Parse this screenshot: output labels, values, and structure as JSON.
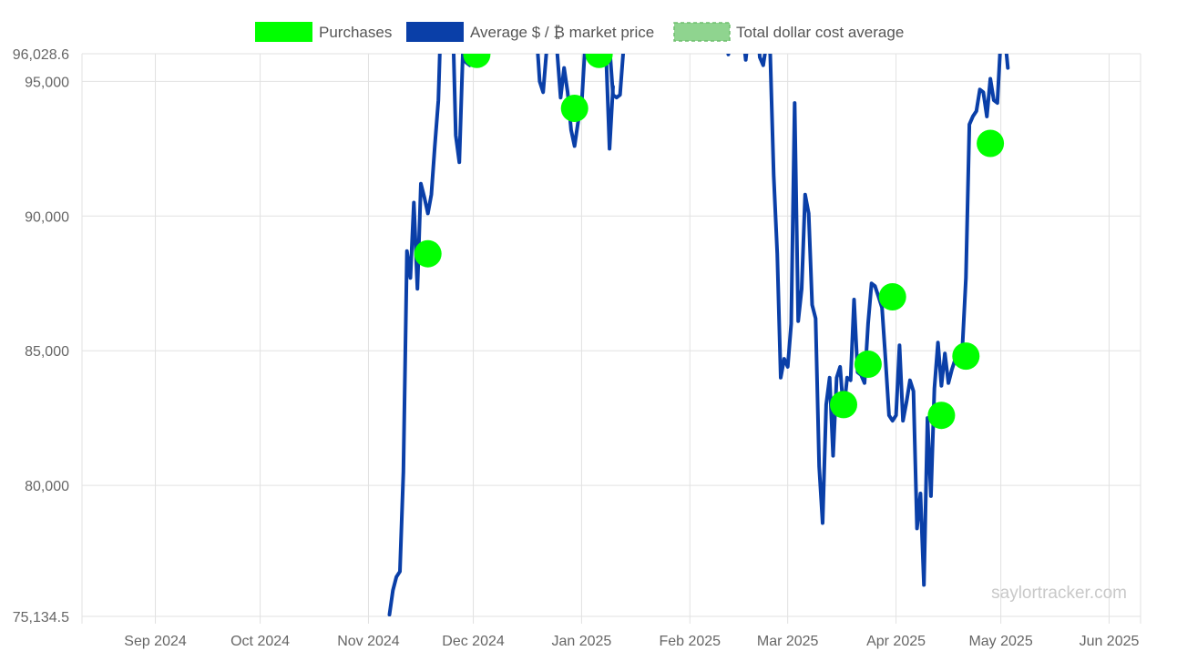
{
  "chart_data": {
    "type": "line",
    "title": "",
    "xlabel": "",
    "ylabel": "",
    "ylim": [
      75134.5,
      96028.6
    ],
    "xlim": [
      "2024-08-11",
      "2025-06-10"
    ],
    "y_ticks": [
      "96,028.6",
      "95,000",
      "90,000",
      "85,000",
      "80,000",
      "75,134.5"
    ],
    "y_tick_values": [
      96028.6,
      95000,
      90000,
      85000,
      80000,
      75134.5
    ],
    "x_ticks": [
      "Sep 2024",
      "Oct 2024",
      "Nov 2024",
      "Dec 2024",
      "Jan 2025",
      "Feb 2025",
      "Mar 2025",
      "Apr 2025",
      "May 2025",
      "Jun 2025"
    ],
    "x_tick_dates": [
      "2024-09-01",
      "2024-10-01",
      "2024-11-01",
      "2024-12-01",
      "2025-01-01",
      "2025-02-01",
      "2025-03-01",
      "2025-04-01",
      "2025-05-01",
      "2025-06-01"
    ],
    "grid": true,
    "legend_position": "top",
    "legend": [
      {
        "label": "Purchases",
        "color": "#00ff00",
        "style": "filled"
      },
      {
        "label": "Average $ / ₿ market price",
        "color": "#0a3fa8",
        "style": "filled"
      },
      {
        "label": "Total dollar cost average",
        "color": "#8fd48f",
        "style": "dashed"
      }
    ],
    "watermark": "saylortracker.com",
    "series": [
      {
        "name": "Average $ / ₿ market price",
        "kind": "line",
        "color": "#0a3fa8",
        "points": [
          [
            "2024-11-07",
            75200
          ],
          [
            "2024-11-08",
            76100
          ],
          [
            "2024-11-09",
            76600
          ],
          [
            "2024-11-10",
            76800
          ],
          [
            "2024-11-11",
            80500
          ],
          [
            "2024-11-12",
            88700
          ],
          [
            "2024-11-13",
            87700
          ],
          [
            "2024-11-14",
            90500
          ],
          [
            "2024-11-15",
            87300
          ],
          [
            "2024-11-16",
            91200
          ],
          [
            "2024-11-17",
            90700
          ],
          [
            "2024-11-18",
            90100
          ],
          [
            "2024-11-19",
            90800
          ],
          [
            "2024-11-20",
            92600
          ],
          [
            "2024-11-21",
            94300
          ],
          [
            "2024-11-22",
            98500
          ],
          [
            "2024-11-25",
            98000
          ],
          [
            "2024-11-26",
            93000
          ],
          [
            "2024-11-27",
            92000
          ],
          [
            "2024-11-28",
            96000
          ],
          [
            "2024-11-29",
            95700
          ],
          [
            "2024-11-30",
            95600
          ],
          [
            "2024-12-01",
            96400
          ],
          [
            "2025-01-09",
            96300
          ],
          [
            "2025-01-10",
            94500
          ],
          [
            "2025-01-11",
            94400
          ],
          [
            "2025-01-12",
            94500
          ],
          [
            "2025-01-13",
            96200
          ],
          [
            "2025-01-18",
            97500
          ],
          [
            "2025-02-16",
            97000
          ],
          [
            "2025-02-17",
            95800
          ],
          [
            "2025-02-18",
            97000
          ],
          [
            "2025-02-19",
            97200
          ],
          [
            "2025-02-20",
            97800
          ],
          [
            "2025-02-21",
            95900
          ],
          [
            "2025-02-22",
            95600
          ],
          [
            "2025-02-23",
            96500
          ],
          [
            "2025-02-24",
            96000
          ],
          [
            "2025-02-25",
            91500
          ],
          [
            "2025-02-26",
            88600
          ],
          [
            "2025-02-27",
            84000
          ],
          [
            "2025-02-28",
            84700
          ],
          [
            "2025-03-01",
            84400
          ],
          [
            "2025-03-02",
            86000
          ],
          [
            "2025-03-03",
            94200
          ],
          [
            "2025-03-04",
            86100
          ],
          [
            "2025-03-05",
            87300
          ],
          [
            "2025-03-06",
            90800
          ],
          [
            "2025-03-07",
            90100
          ],
          [
            "2025-03-08",
            86700
          ],
          [
            "2025-03-09",
            86200
          ],
          [
            "2025-03-10",
            80700
          ],
          [
            "2025-03-11",
            78600
          ],
          [
            "2025-03-12",
            83000
          ],
          [
            "2025-03-13",
            84000
          ],
          [
            "2025-03-14",
            81100
          ],
          [
            "2025-03-15",
            84000
          ],
          [
            "2025-03-16",
            84400
          ],
          [
            "2025-03-17",
            82700
          ],
          [
            "2025-03-18",
            84000
          ],
          [
            "2025-03-19",
            83900
          ],
          [
            "2025-03-20",
            86900
          ],
          [
            "2025-03-21",
            84200
          ],
          [
            "2025-03-22",
            84100
          ],
          [
            "2025-03-23",
            83800
          ],
          [
            "2025-03-24",
            86000
          ],
          [
            "2025-03-25",
            87500
          ],
          [
            "2025-03-26",
            87400
          ],
          [
            "2025-03-27",
            87000
          ],
          [
            "2025-03-28",
            86600
          ],
          [
            "2025-03-29",
            84700
          ],
          [
            "2025-03-30",
            82600
          ],
          [
            "2025-03-31",
            82400
          ],
          [
            "2025-04-01",
            82600
          ],
          [
            "2025-04-02",
            85200
          ],
          [
            "2025-04-03",
            82400
          ],
          [
            "2025-04-04",
            83100
          ],
          [
            "2025-04-05",
            83900
          ],
          [
            "2025-04-06",
            83500
          ],
          [
            "2025-04-07",
            78400
          ],
          [
            "2025-04-08",
            79700
          ],
          [
            "2025-04-09",
            76300
          ],
          [
            "2025-04-10",
            82500
          ],
          [
            "2025-04-11",
            79600
          ],
          [
            "2025-04-12",
            83600
          ],
          [
            "2025-04-13",
            85300
          ],
          [
            "2025-04-14",
            83700
          ],
          [
            "2025-04-15",
            84900
          ],
          [
            "2025-04-16",
            83800
          ],
          [
            "2025-04-17",
            84300
          ],
          [
            "2025-04-18",
            84700
          ],
          [
            "2025-04-19",
            84800
          ],
          [
            "2025-04-20",
            85100
          ],
          [
            "2025-04-21",
            87700
          ],
          [
            "2025-04-22",
            93400
          ],
          [
            "2025-04-23",
            93700
          ],
          [
            "2025-04-24",
            93900
          ],
          [
            "2025-04-25",
            94700
          ],
          [
            "2025-04-26",
            94600
          ],
          [
            "2025-04-27",
            93700
          ],
          [
            "2025-04-28",
            95100
          ],
          [
            "2025-04-29",
            94300
          ],
          [
            "2025-04-30",
            94200
          ],
          [
            "2025-05-01",
            96600
          ],
          [
            "2025-05-02",
            96900
          ],
          [
            "2025-05-03",
            95500
          ]
        ],
        "gaps": [
          [
            [
              "2024-12-03",
              97000
            ],
            [
              "2024-12-04",
              96000
            ],
            [
              "2024-12-06",
              97200
            ],
            [
              "2024-12-19",
              97000
            ],
            [
              "2024-12-20",
              95000
            ],
            [
              "2024-12-21",
              94600
            ],
            [
              "2024-12-22",
              96200
            ],
            [
              "2024-12-24",
              97000
            ],
            [
              "2024-12-25",
              96100
            ],
            [
              "2024-12-26",
              94400
            ],
            [
              "2024-12-27",
              95500
            ],
            [
              "2024-12-28",
              94600
            ],
            [
              "2024-12-29",
              93200
            ],
            [
              "2024-12-30",
              92600
            ],
            [
              "2024-12-31",
              93500
            ],
            [
              "2025-01-01",
              94100
            ],
            [
              "2025-01-02",
              96300
            ],
            [
              "2025-01-03",
              97500
            ],
            [
              "2025-01-07",
              96800
            ],
            [
              "2025-01-08",
              96100
            ],
            [
              "2025-01-09",
              92500
            ],
            [
              "2025-01-10",
              94800
            ]
          ],
          [
            [
              "2025-02-10",
              97500
            ],
            [
              "2025-02-12",
              96000
            ],
            [
              "2025-02-13",
              96600
            ],
            [
              "2025-02-14",
              97200
            ]
          ]
        ]
      },
      {
        "name": "Purchases",
        "kind": "points",
        "color": "#00ff00",
        "points": [
          [
            "2024-11-18",
            88600
          ],
          [
            "2024-12-02",
            96000
          ],
          [
            "2024-12-30",
            94000
          ],
          [
            "2025-01-06",
            96000
          ],
          [
            "2025-03-17",
            83000
          ],
          [
            "2025-03-24",
            84500
          ],
          [
            "2025-03-31",
            87000
          ],
          [
            "2025-04-14",
            82600
          ],
          [
            "2025-04-21",
            84800
          ],
          [
            "2025-04-28",
            92700
          ]
        ]
      }
    ]
  }
}
